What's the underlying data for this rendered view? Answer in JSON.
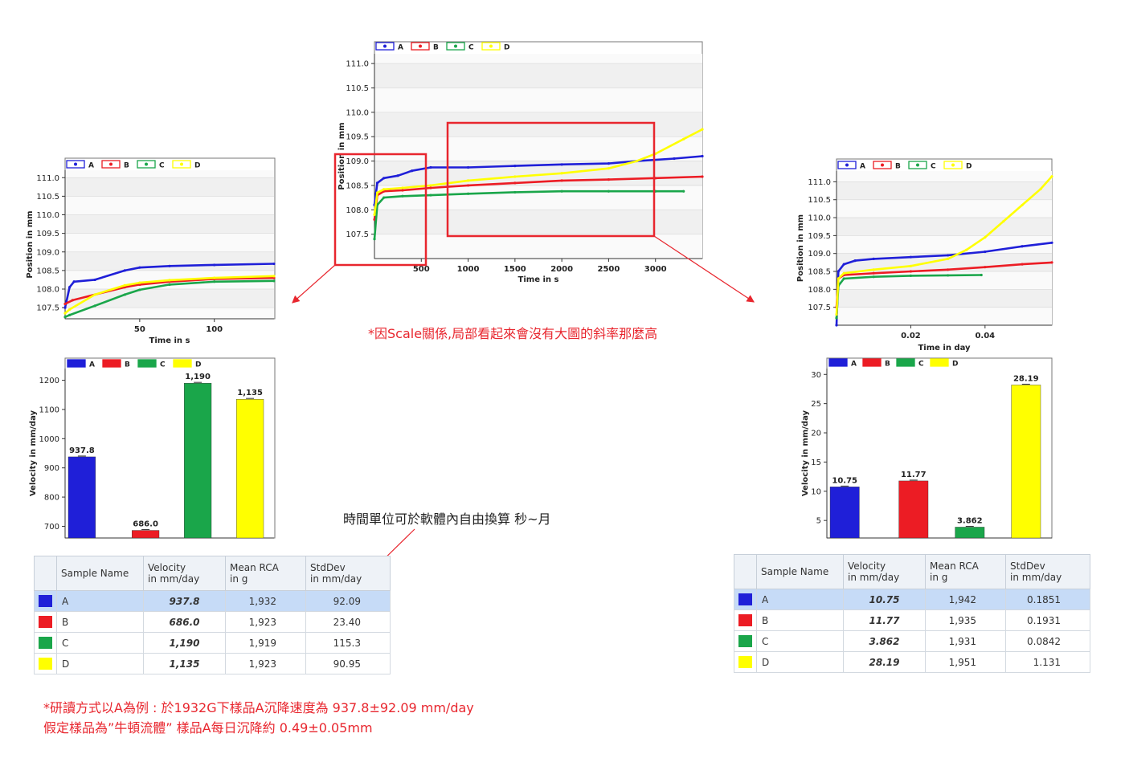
{
  "colors": {
    "A": "#1f1fd8",
    "B": "#ec1c24",
    "C": "#1aa64a",
    "D": "#ffff00"
  },
  "chart_data": [
    {
      "id": "pos_main",
      "type": "line",
      "legend": [
        "A",
        "B",
        "C",
        "D"
      ],
      "xlabel": "Time in s",
      "ylabel": "Position in mm",
      "xlim": [
        0,
        3500
      ],
      "ylim": [
        107.0,
        111.2
      ],
      "xticks": [
        500,
        1000,
        1500,
        2000,
        2500,
        3000
      ],
      "xtick_labels": [
        "500",
        "1000",
        "1500",
        "2000",
        "2500",
        "3000"
      ],
      "yticks": [
        107.5,
        108.0,
        108.5,
        109.0,
        109.5,
        110.0,
        110.5,
        111.0
      ],
      "ytick_labels": [
        "107.5",
        "108.0",
        "108.5",
        "109.0",
        "109.5",
        "110.0",
        "110.5",
        "111.0"
      ],
      "series": [
        {
          "name": "A",
          "x": [
            0,
            30,
            100,
            250,
            400,
            600,
            1000,
            1500,
            2000,
            2500,
            2800,
            3200,
            3500
          ],
          "y": [
            108.1,
            108.55,
            108.65,
            108.7,
            108.8,
            108.87,
            108.87,
            108.9,
            108.93,
            108.95,
            109.0,
            109.05,
            109.1
          ]
        },
        {
          "name": "B",
          "x": [
            0,
            30,
            100,
            300,
            600,
            1000,
            1500,
            2000,
            2500,
            3000,
            3500
          ],
          "y": [
            107.8,
            108.3,
            108.38,
            108.4,
            108.45,
            108.5,
            108.55,
            108.6,
            108.62,
            108.65,
            108.68
          ]
        },
        {
          "name": "C",
          "x": [
            0,
            30,
            100,
            300,
            600,
            1000,
            1500,
            2000,
            2500,
            3000,
            3300
          ],
          "y": [
            107.4,
            108.1,
            108.25,
            108.28,
            108.3,
            108.33,
            108.36,
            108.38,
            108.38,
            108.38,
            108.38
          ]
        },
        {
          "name": "D",
          "x": [
            0,
            30,
            100,
            300,
            600,
            1000,
            1500,
            2000,
            2500,
            2800,
            3000,
            3300,
            3500
          ],
          "y": [
            107.9,
            108.35,
            108.42,
            108.45,
            108.5,
            108.6,
            108.68,
            108.75,
            108.85,
            109.0,
            109.15,
            109.45,
            109.65
          ]
        }
      ]
    },
    {
      "id": "pos_left",
      "type": "line",
      "legend": [
        "A",
        "B",
        "C",
        "D"
      ],
      "xlabel": "Time in s",
      "ylabel": "Position in mm",
      "xlim": [
        0,
        140
      ],
      "ylim": [
        107.2,
        111.2
      ],
      "xticks": [
        50,
        100
      ],
      "xtick_labels": [
        "50",
        "100"
      ],
      "yticks": [
        107.5,
        108.0,
        108.5,
        109.0,
        109.5,
        110.0,
        110.5,
        111.0
      ],
      "ytick_labels": [
        "107.5",
        "108.0",
        "108.5",
        "109.0",
        "109.5",
        "110.0",
        "110.5",
        "111.0"
      ],
      "series": [
        {
          "name": "A",
          "x": [
            0,
            3,
            6,
            20,
            40,
            50,
            70,
            100,
            140
          ],
          "y": [
            107.5,
            108.05,
            108.2,
            108.25,
            108.5,
            108.58,
            108.62,
            108.65,
            108.68
          ]
        },
        {
          "name": "B",
          "x": [
            0,
            5,
            20,
            40,
            50,
            70,
            100,
            140
          ],
          "y": [
            107.6,
            107.7,
            107.85,
            108.05,
            108.12,
            108.2,
            108.27,
            108.3
          ]
        },
        {
          "name": "C",
          "x": [
            0,
            3,
            20,
            40,
            50,
            70,
            100,
            140
          ],
          "y": [
            107.25,
            107.3,
            107.55,
            107.85,
            107.98,
            108.12,
            108.2,
            108.22
          ]
        },
        {
          "name": "D",
          "x": [
            0,
            3,
            20,
            40,
            50,
            70,
            100,
            140
          ],
          "y": [
            107.35,
            107.45,
            107.85,
            108.1,
            108.17,
            108.24,
            108.3,
            108.35
          ]
        }
      ]
    },
    {
      "id": "pos_right",
      "type": "line",
      "legend": [
        "A",
        "B",
        "C",
        "D"
      ],
      "xlabel": "Time in day",
      "ylabel": "Position in mm",
      "xlim": [
        0,
        0.058
      ],
      "ylim": [
        107.0,
        111.3
      ],
      "xticks": [
        0.02,
        0.04
      ],
      "xtick_labels": [
        "0.02",
        "0.04"
      ],
      "yticks": [
        107.5,
        108.0,
        108.5,
        109.0,
        109.5,
        110.0,
        110.5,
        111.0
      ],
      "ytick_labels": [
        "107.5",
        "108.0",
        "108.5",
        "109.0",
        "109.5",
        "110.0",
        "110.5",
        "111.0"
      ],
      "series": [
        {
          "name": "A",
          "x": [
            0,
            0.0005,
            0.002,
            0.005,
            0.01,
            0.02,
            0.03,
            0.04,
            0.05,
            0.058
          ],
          "y": [
            107.0,
            108.5,
            108.7,
            108.8,
            108.85,
            108.9,
            108.95,
            109.05,
            109.2,
            109.3
          ]
        },
        {
          "name": "B",
          "x": [
            0,
            0.0005,
            0.002,
            0.01,
            0.02,
            0.03,
            0.04,
            0.05,
            0.058
          ],
          "y": [
            107.5,
            108.3,
            108.4,
            108.45,
            108.5,
            108.55,
            108.62,
            108.7,
            108.75
          ]
        },
        {
          "name": "C",
          "x": [
            0,
            0.0005,
            0.002,
            0.01,
            0.02,
            0.03,
            0.039
          ],
          "y": [
            107.2,
            108.1,
            108.3,
            108.35,
            108.38,
            108.39,
            108.4
          ]
        },
        {
          "name": "D",
          "x": [
            0,
            0.0005,
            0.002,
            0.01,
            0.02,
            0.03,
            0.035,
            0.04,
            0.045,
            0.05,
            0.055,
            0.058
          ],
          "y": [
            107.3,
            108.3,
            108.45,
            108.55,
            108.65,
            108.85,
            109.1,
            109.45,
            109.9,
            110.35,
            110.8,
            111.15
          ]
        }
      ]
    },
    {
      "id": "vel_left",
      "type": "bar",
      "legend": [
        "A",
        "B",
        "C",
        "D"
      ],
      "categories": [
        "A",
        "B",
        "C",
        "D"
      ],
      "values": [
        937.8,
        686.0,
        1190,
        1135
      ],
      "value_labels": [
        "937.8",
        "686.0",
        "1,190",
        "1,135"
      ],
      "ylabel": "Velocity in mm/day",
      "ylim": [
        660,
        1240
      ],
      "yticks": [
        700,
        800,
        900,
        1000,
        1100,
        1200
      ],
      "ytick_labels": [
        "700",
        "800",
        "900",
        "1000",
        "1100",
        "1200"
      ]
    },
    {
      "id": "vel_right",
      "type": "bar",
      "legend": [
        "A",
        "B",
        "C",
        "D"
      ],
      "categories": [
        "A",
        "B",
        "C",
        "D"
      ],
      "values": [
        10.75,
        11.77,
        3.862,
        28.19
      ],
      "value_labels": [
        "10.75",
        "11.77",
        "3.862",
        "28.19"
      ],
      "ylabel": "Velocity in mm/day",
      "ylim": [
        2,
        31
      ],
      "yticks": [
        5,
        10,
        15,
        20,
        25,
        30
      ],
      "ytick_labels": [
        "5",
        "10",
        "15",
        "20",
        "25",
        "30"
      ]
    }
  ],
  "tables": {
    "left": {
      "headers": {
        "name": "Sample Name",
        "vel1": "Velocity",
        "vel2": "in mm/day",
        "rca1": "Mean RCA",
        "rca2": "in g",
        "sd1": "StdDev",
        "sd2": "in mm/day"
      },
      "rows": [
        {
          "name": "A",
          "velocity": "937.8",
          "rca": "1,932",
          "sd": "92.09"
        },
        {
          "name": "B",
          "velocity": "686.0",
          "rca": "1,923",
          "sd": "23.40"
        },
        {
          "name": "C",
          "velocity": "1,190",
          "rca": "1,919",
          "sd": "115.3"
        },
        {
          "name": "D",
          "velocity": "1,135",
          "rca": "1,923",
          "sd": "90.95"
        }
      ]
    },
    "right": {
      "headers": {
        "name": "Sample Name",
        "vel1": "Velocity",
        "vel2": "in mm/day",
        "rca1": "Mean RCA",
        "rca2": "in g",
        "sd1": "StdDev",
        "sd2": "in mm/day"
      },
      "rows": [
        {
          "name": "A",
          "velocity": "10.75",
          "rca": "1,942",
          "sd": "0.1851"
        },
        {
          "name": "B",
          "velocity": "11.77",
          "rca": "1,935",
          "sd": "0.1931"
        },
        {
          "name": "C",
          "velocity": "3.862",
          "rca": "1,931",
          "sd": "0.0842"
        },
        {
          "name": "D",
          "velocity": "28.19",
          "rca": "1,951",
          "sd": "1.131"
        }
      ]
    }
  },
  "notes": {
    "scale": "*因Scale關係,局部看起來會沒有大圖的斜率那麼高",
    "time_unit": "時間單位可於軟體內自由換算 秒~月",
    "reading1": "*研讀方式以A為例 : 於1932G下樣品A沉降速度為 937.8±92.09 mm/day",
    "reading2": "假定樣品為”牛頓流體” 樣品A每日沉降約 0.49±0.05mm"
  }
}
